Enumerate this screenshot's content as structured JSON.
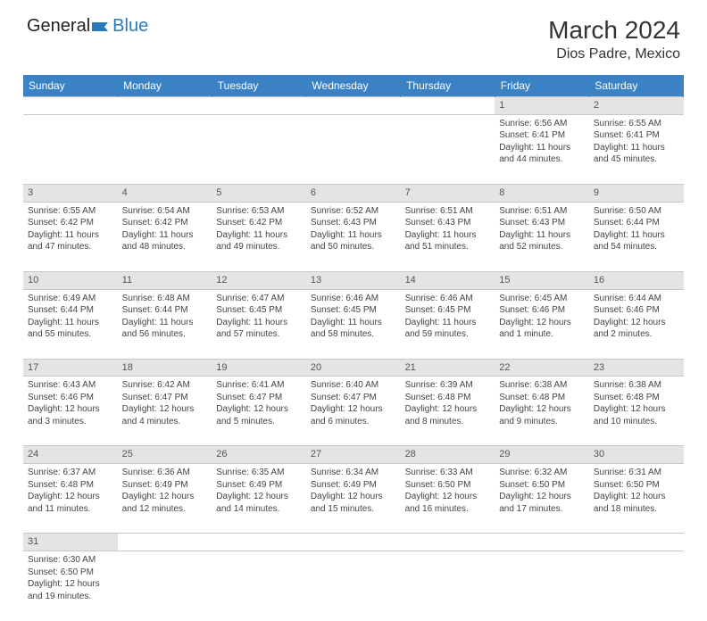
{
  "logo": {
    "part1": "General",
    "part2": "Blue"
  },
  "title": "March 2024",
  "location": "Dios Padre, Mexico",
  "colors": {
    "header_bg": "#3b82c4",
    "header_text": "#ffffff",
    "daynum_bg": "#e4e4e4",
    "border": "#d0d0d0",
    "text": "#444444",
    "logo_accent": "#2a7ab8"
  },
  "weekdays": [
    "Sunday",
    "Monday",
    "Tuesday",
    "Wednesday",
    "Thursday",
    "Friday",
    "Saturday"
  ],
  "weeks": [
    {
      "nums": [
        "",
        "",
        "",
        "",
        "",
        "1",
        "2"
      ],
      "cells": [
        null,
        null,
        null,
        null,
        null,
        {
          "sunrise": "Sunrise: 6:56 AM",
          "sunset": "Sunset: 6:41 PM",
          "day1": "Daylight: 11 hours",
          "day2": "and 44 minutes."
        },
        {
          "sunrise": "Sunrise: 6:55 AM",
          "sunset": "Sunset: 6:41 PM",
          "day1": "Daylight: 11 hours",
          "day2": "and 45 minutes."
        }
      ]
    },
    {
      "nums": [
        "3",
        "4",
        "5",
        "6",
        "7",
        "8",
        "9"
      ],
      "cells": [
        {
          "sunrise": "Sunrise: 6:55 AM",
          "sunset": "Sunset: 6:42 PM",
          "day1": "Daylight: 11 hours",
          "day2": "and 47 minutes."
        },
        {
          "sunrise": "Sunrise: 6:54 AM",
          "sunset": "Sunset: 6:42 PM",
          "day1": "Daylight: 11 hours",
          "day2": "and 48 minutes."
        },
        {
          "sunrise": "Sunrise: 6:53 AM",
          "sunset": "Sunset: 6:42 PM",
          "day1": "Daylight: 11 hours",
          "day2": "and 49 minutes."
        },
        {
          "sunrise": "Sunrise: 6:52 AM",
          "sunset": "Sunset: 6:43 PM",
          "day1": "Daylight: 11 hours",
          "day2": "and 50 minutes."
        },
        {
          "sunrise": "Sunrise: 6:51 AM",
          "sunset": "Sunset: 6:43 PM",
          "day1": "Daylight: 11 hours",
          "day2": "and 51 minutes."
        },
        {
          "sunrise": "Sunrise: 6:51 AM",
          "sunset": "Sunset: 6:43 PM",
          "day1": "Daylight: 11 hours",
          "day2": "and 52 minutes."
        },
        {
          "sunrise": "Sunrise: 6:50 AM",
          "sunset": "Sunset: 6:44 PM",
          "day1": "Daylight: 11 hours",
          "day2": "and 54 minutes."
        }
      ]
    },
    {
      "nums": [
        "10",
        "11",
        "12",
        "13",
        "14",
        "15",
        "16"
      ],
      "cells": [
        {
          "sunrise": "Sunrise: 6:49 AM",
          "sunset": "Sunset: 6:44 PM",
          "day1": "Daylight: 11 hours",
          "day2": "and 55 minutes."
        },
        {
          "sunrise": "Sunrise: 6:48 AM",
          "sunset": "Sunset: 6:44 PM",
          "day1": "Daylight: 11 hours",
          "day2": "and 56 minutes."
        },
        {
          "sunrise": "Sunrise: 6:47 AM",
          "sunset": "Sunset: 6:45 PM",
          "day1": "Daylight: 11 hours",
          "day2": "and 57 minutes."
        },
        {
          "sunrise": "Sunrise: 6:46 AM",
          "sunset": "Sunset: 6:45 PM",
          "day1": "Daylight: 11 hours",
          "day2": "and 58 minutes."
        },
        {
          "sunrise": "Sunrise: 6:46 AM",
          "sunset": "Sunset: 6:45 PM",
          "day1": "Daylight: 11 hours",
          "day2": "and 59 minutes."
        },
        {
          "sunrise": "Sunrise: 6:45 AM",
          "sunset": "Sunset: 6:46 PM",
          "day1": "Daylight: 12 hours",
          "day2": "and 1 minute."
        },
        {
          "sunrise": "Sunrise: 6:44 AM",
          "sunset": "Sunset: 6:46 PM",
          "day1": "Daylight: 12 hours",
          "day2": "and 2 minutes."
        }
      ]
    },
    {
      "nums": [
        "17",
        "18",
        "19",
        "20",
        "21",
        "22",
        "23"
      ],
      "cells": [
        {
          "sunrise": "Sunrise: 6:43 AM",
          "sunset": "Sunset: 6:46 PM",
          "day1": "Daylight: 12 hours",
          "day2": "and 3 minutes."
        },
        {
          "sunrise": "Sunrise: 6:42 AM",
          "sunset": "Sunset: 6:47 PM",
          "day1": "Daylight: 12 hours",
          "day2": "and 4 minutes."
        },
        {
          "sunrise": "Sunrise: 6:41 AM",
          "sunset": "Sunset: 6:47 PM",
          "day1": "Daylight: 12 hours",
          "day2": "and 5 minutes."
        },
        {
          "sunrise": "Sunrise: 6:40 AM",
          "sunset": "Sunset: 6:47 PM",
          "day1": "Daylight: 12 hours",
          "day2": "and 6 minutes."
        },
        {
          "sunrise": "Sunrise: 6:39 AM",
          "sunset": "Sunset: 6:48 PM",
          "day1": "Daylight: 12 hours",
          "day2": "and 8 minutes."
        },
        {
          "sunrise": "Sunrise: 6:38 AM",
          "sunset": "Sunset: 6:48 PM",
          "day1": "Daylight: 12 hours",
          "day2": "and 9 minutes."
        },
        {
          "sunrise": "Sunrise: 6:38 AM",
          "sunset": "Sunset: 6:48 PM",
          "day1": "Daylight: 12 hours",
          "day2": "and 10 minutes."
        }
      ]
    },
    {
      "nums": [
        "24",
        "25",
        "26",
        "27",
        "28",
        "29",
        "30"
      ],
      "cells": [
        {
          "sunrise": "Sunrise: 6:37 AM",
          "sunset": "Sunset: 6:48 PM",
          "day1": "Daylight: 12 hours",
          "day2": "and 11 minutes."
        },
        {
          "sunrise": "Sunrise: 6:36 AM",
          "sunset": "Sunset: 6:49 PM",
          "day1": "Daylight: 12 hours",
          "day2": "and 12 minutes."
        },
        {
          "sunrise": "Sunrise: 6:35 AM",
          "sunset": "Sunset: 6:49 PM",
          "day1": "Daylight: 12 hours",
          "day2": "and 14 minutes."
        },
        {
          "sunrise": "Sunrise: 6:34 AM",
          "sunset": "Sunset: 6:49 PM",
          "day1": "Daylight: 12 hours",
          "day2": "and 15 minutes."
        },
        {
          "sunrise": "Sunrise: 6:33 AM",
          "sunset": "Sunset: 6:50 PM",
          "day1": "Daylight: 12 hours",
          "day2": "and 16 minutes."
        },
        {
          "sunrise": "Sunrise: 6:32 AM",
          "sunset": "Sunset: 6:50 PM",
          "day1": "Daylight: 12 hours",
          "day2": "and 17 minutes."
        },
        {
          "sunrise": "Sunrise: 6:31 AM",
          "sunset": "Sunset: 6:50 PM",
          "day1": "Daylight: 12 hours",
          "day2": "and 18 minutes."
        }
      ]
    },
    {
      "nums": [
        "31",
        "",
        "",
        "",
        "",
        "",
        ""
      ],
      "cells": [
        {
          "sunrise": "Sunrise: 6:30 AM",
          "sunset": "Sunset: 6:50 PM",
          "day1": "Daylight: 12 hours",
          "day2": "and 19 minutes."
        },
        null,
        null,
        null,
        null,
        null,
        null
      ]
    }
  ]
}
